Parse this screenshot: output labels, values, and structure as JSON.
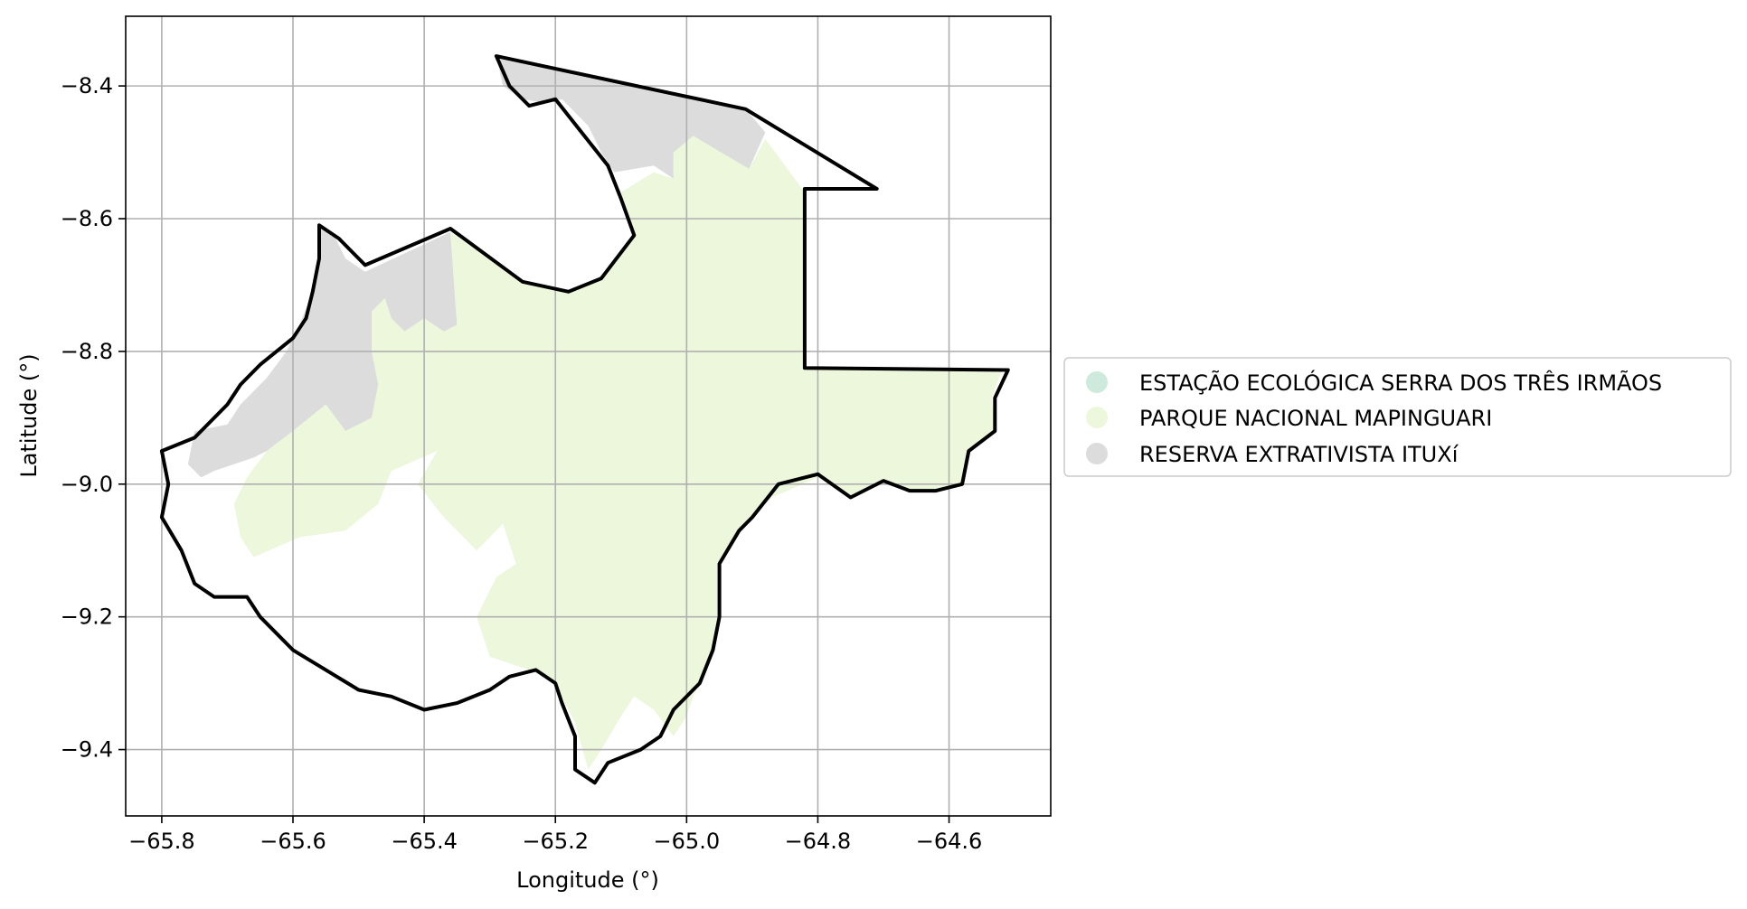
{
  "chart_data": {
    "type": "map",
    "xlabel": "Longitude (°)",
    "ylabel": "Latitude (°)",
    "xlim": [
      -65.855,
      -64.445
    ],
    "ylim": [
      -9.5,
      -8.295
    ],
    "grid": true,
    "xticks": [
      -65.8,
      -65.6,
      -65.4,
      -65.2,
      -65.0,
      -64.8,
      -64.6
    ],
    "xtick_labels": [
      "−65.8",
      "−65.6",
      "−65.4",
      "−65.2",
      "−65.0",
      "−64.8",
      "−64.6"
    ],
    "yticks": [
      -8.4,
      -8.6,
      -8.8,
      -9.0,
      -9.2,
      -9.4
    ],
    "ytick_labels": [
      "−8.4",
      "−8.6",
      "−8.8",
      "−9.0",
      "−9.2",
      "−9.4"
    ],
    "legend_position": "right",
    "legend": [
      {
        "label": "ESTAÇÃO ECOLÓGICA SERRA DOS TRÊS IRMÃOS",
        "color": "#cdeadc"
      },
      {
        "label": "PARQUE NACIONAL MAPINGUARI",
        "color": "#ecf7dc"
      },
      {
        "label": "RESERVA EXTRATIVISTA ITUXí",
        "color": "#dcdcdc"
      }
    ],
    "regions": [
      {
        "name": "RESERVA EXTRATIVISTA ITUXí",
        "color": "#dcdcdc",
        "polygons": [
          [
            [
              -65.29,
              -8.355
            ],
            [
              -64.91,
              -8.435
            ],
            [
              -64.88,
              -8.47
            ],
            [
              -64.905,
              -8.525
            ],
            [
              -64.99,
              -8.48
            ],
            [
              -65.02,
              -8.5
            ],
            [
              -65.02,
              -8.54
            ],
            [
              -65.05,
              -8.52
            ],
            [
              -65.11,
              -8.53
            ],
            [
              -65.13,
              -8.5
            ],
            [
              -65.15,
              -8.46
            ],
            [
              -65.19,
              -8.42
            ],
            [
              -65.22,
              -8.425
            ],
            [
              -65.25,
              -8.42
            ],
            [
              -65.28,
              -8.4
            ],
            [
              -65.29,
              -8.355
            ]
          ],
          [
            [
              -65.56,
              -8.61
            ],
            [
              -65.54,
              -8.62
            ],
            [
              -65.52,
              -8.66
            ],
            [
              -65.49,
              -8.68
            ],
            [
              -65.36,
              -8.62
            ],
            [
              -65.35,
              -8.76
            ],
            [
              -65.37,
              -8.77
            ],
            [
              -65.4,
              -8.75
            ],
            [
              -65.43,
              -8.77
            ],
            [
              -65.45,
              -8.75
            ],
            [
              -65.46,
              -8.72
            ],
            [
              -65.48,
              -8.74
            ],
            [
              -65.48,
              -8.8
            ],
            [
              -65.47,
              -8.85
            ],
            [
              -65.48,
              -8.9
            ],
            [
              -65.52,
              -8.92
            ],
            [
              -65.55,
              -8.88
            ],
            [
              -65.6,
              -8.92
            ],
            [
              -65.64,
              -8.95
            ],
            [
              -65.66,
              -8.96
            ],
            [
              -65.72,
              -8.98
            ],
            [
              -65.74,
              -8.99
            ],
            [
              -65.76,
              -8.97
            ],
            [
              -65.75,
              -8.92
            ],
            [
              -65.7,
              -8.91
            ],
            [
              -65.68,
              -8.88
            ],
            [
              -65.64,
              -8.84
            ],
            [
              -65.61,
              -8.8
            ],
            [
              -65.59,
              -8.76
            ],
            [
              -65.57,
              -8.71
            ],
            [
              -65.56,
              -8.66
            ],
            [
              -65.56,
              -8.61
            ]
          ]
        ]
      },
      {
        "name": "PARQUE NACIONAL MAPINGUARI",
        "color": "#ecf7dc",
        "polygons": [
          [
            [
              -64.99,
              -8.475
            ],
            [
              -64.905,
              -8.525
            ],
            [
              -64.88,
              -8.48
            ],
            [
              -64.82,
              -8.56
            ],
            [
              -64.82,
              -8.825
            ],
            [
              -64.52,
              -8.83
            ],
            [
              -64.535,
              -8.87
            ],
            [
              -64.53,
              -8.92
            ],
            [
              -64.57,
              -8.95
            ],
            [
              -64.58,
              -9.0
            ],
            [
              -64.62,
              -9.01
            ],
            [
              -64.66,
              -9.01
            ],
            [
              -64.7,
              -9.0
            ],
            [
              -64.75,
              -9.02
            ],
            [
              -64.8,
              -8.99
            ],
            [
              -64.87,
              -9.02
            ],
            [
              -64.92,
              -9.07
            ],
            [
              -64.95,
              -9.12
            ],
            [
              -64.95,
              -9.2
            ],
            [
              -64.97,
              -9.28
            ],
            [
              -64.99,
              -9.32
            ],
            [
              -65.0,
              -9.35
            ],
            [
              -65.02,
              -9.38
            ],
            [
              -65.05,
              -9.34
            ],
            [
              -65.08,
              -9.32
            ],
            [
              -65.1,
              -9.35
            ],
            [
              -65.13,
              -9.4
            ],
            [
              -65.15,
              -9.43
            ],
            [
              -65.17,
              -9.36
            ],
            [
              -65.2,
              -9.3
            ],
            [
              -65.24,
              -9.28
            ],
            [
              -65.3,
              -9.26
            ],
            [
              -65.32,
              -9.2
            ],
            [
              -65.29,
              -9.14
            ],
            [
              -65.26,
              -9.12
            ],
            [
              -65.28,
              -9.06
            ],
            [
              -65.32,
              -9.1
            ],
            [
              -65.37,
              -9.05
            ],
            [
              -65.41,
              -9.0
            ],
            [
              -65.38,
              -8.95
            ],
            [
              -65.45,
              -8.98
            ],
            [
              -65.47,
              -9.03
            ],
            [
              -65.52,
              -9.07
            ],
            [
              -65.59,
              -9.08
            ],
            [
              -65.66,
              -9.11
            ],
            [
              -65.68,
              -9.08
            ],
            [
              -65.69,
              -9.03
            ],
            [
              -65.67,
              -8.99
            ],
            [
              -65.64,
              -8.95
            ],
            [
              -65.6,
              -8.92
            ],
            [
              -65.55,
              -8.88
            ],
            [
              -65.52,
              -8.92
            ],
            [
              -65.48,
              -8.9
            ],
            [
              -65.47,
              -8.85
            ],
            [
              -65.48,
              -8.8
            ],
            [
              -65.48,
              -8.74
            ],
            [
              -65.46,
              -8.72
            ],
            [
              -65.45,
              -8.75
            ],
            [
              -65.43,
              -8.77
            ],
            [
              -65.4,
              -8.75
            ],
            [
              -65.37,
              -8.77
            ],
            [
              -65.35,
              -8.76
            ],
            [
              -65.36,
              -8.62
            ],
            [
              -65.25,
              -8.695
            ],
            [
              -65.18,
              -8.71
            ],
            [
              -65.13,
              -8.69
            ],
            [
              -65.08,
              -8.625
            ],
            [
              -65.1,
              -8.56
            ],
            [
              -65.05,
              -8.53
            ],
            [
              -65.02,
              -8.54
            ],
            [
              -65.02,
              -8.5
            ],
            [
              -64.99,
              -8.475
            ]
          ]
        ]
      }
    ],
    "boundary": [
      [
        -65.29,
        -8.355
      ],
      [
        -64.91,
        -8.435
      ],
      [
        -64.71,
        -8.555
      ],
      [
        -64.82,
        -8.555
      ],
      [
        -64.82,
        -8.825
      ],
      [
        -64.51,
        -8.828
      ],
      [
        -64.53,
        -8.87
      ],
      [
        -64.53,
        -8.92
      ],
      [
        -64.57,
        -8.95
      ],
      [
        -64.58,
        -9.0
      ],
      [
        -64.62,
        -9.01
      ],
      [
        -64.66,
        -9.01
      ],
      [
        -64.7,
        -8.995
      ],
      [
        -64.75,
        -9.02
      ],
      [
        -64.8,
        -8.985
      ],
      [
        -64.86,
        -9.0
      ],
      [
        -64.9,
        -9.05
      ],
      [
        -64.92,
        -9.07
      ],
      [
        -64.95,
        -9.12
      ],
      [
        -64.95,
        -9.2
      ],
      [
        -64.96,
        -9.25
      ],
      [
        -64.98,
        -9.3
      ],
      [
        -65.02,
        -9.34
      ],
      [
        -65.04,
        -9.38
      ],
      [
        -65.07,
        -9.4
      ],
      [
        -65.12,
        -9.42
      ],
      [
        -65.14,
        -9.45
      ],
      [
        -65.17,
        -9.43
      ],
      [
        -65.17,
        -9.38
      ],
      [
        -65.19,
        -9.33
      ],
      [
        -65.2,
        -9.3
      ],
      [
        -65.23,
        -9.28
      ],
      [
        -65.27,
        -9.29
      ],
      [
        -65.3,
        -9.31
      ],
      [
        -65.35,
        -9.33
      ],
      [
        -65.4,
        -9.34
      ],
      [
        -65.45,
        -9.32
      ],
      [
        -65.5,
        -9.31
      ],
      [
        -65.55,
        -9.28
      ],
      [
        -65.6,
        -9.25
      ],
      [
        -65.65,
        -9.2
      ],
      [
        -65.67,
        -9.17
      ],
      [
        -65.72,
        -9.17
      ],
      [
        -65.75,
        -9.15
      ],
      [
        -65.77,
        -9.1
      ],
      [
        -65.8,
        -9.05
      ],
      [
        -65.79,
        -9.0
      ],
      [
        -65.8,
        -8.95
      ],
      [
        -65.75,
        -8.93
      ],
      [
        -65.7,
        -8.88
      ],
      [
        -65.68,
        -8.85
      ],
      [
        -65.65,
        -8.82
      ],
      [
        -65.6,
        -8.78
      ],
      [
        -65.58,
        -8.75
      ],
      [
        -65.57,
        -8.71
      ],
      [
        -65.56,
        -8.66
      ],
      [
        -65.56,
        -8.61
      ],
      [
        -65.53,
        -8.63
      ],
      [
        -65.49,
        -8.67
      ],
      [
        -65.36,
        -8.615
      ],
      [
        -65.25,
        -8.695
      ],
      [
        -65.18,
        -8.71
      ],
      [
        -65.13,
        -8.69
      ],
      [
        -65.08,
        -8.625
      ],
      [
        -65.1,
        -8.57
      ],
      [
        -65.12,
        -8.52
      ],
      [
        -65.16,
        -8.47
      ],
      [
        -65.2,
        -8.42
      ],
      [
        -65.24,
        -8.43
      ],
      [
        -65.27,
        -8.4
      ],
      [
        -65.29,
        -8.355
      ]
    ]
  }
}
